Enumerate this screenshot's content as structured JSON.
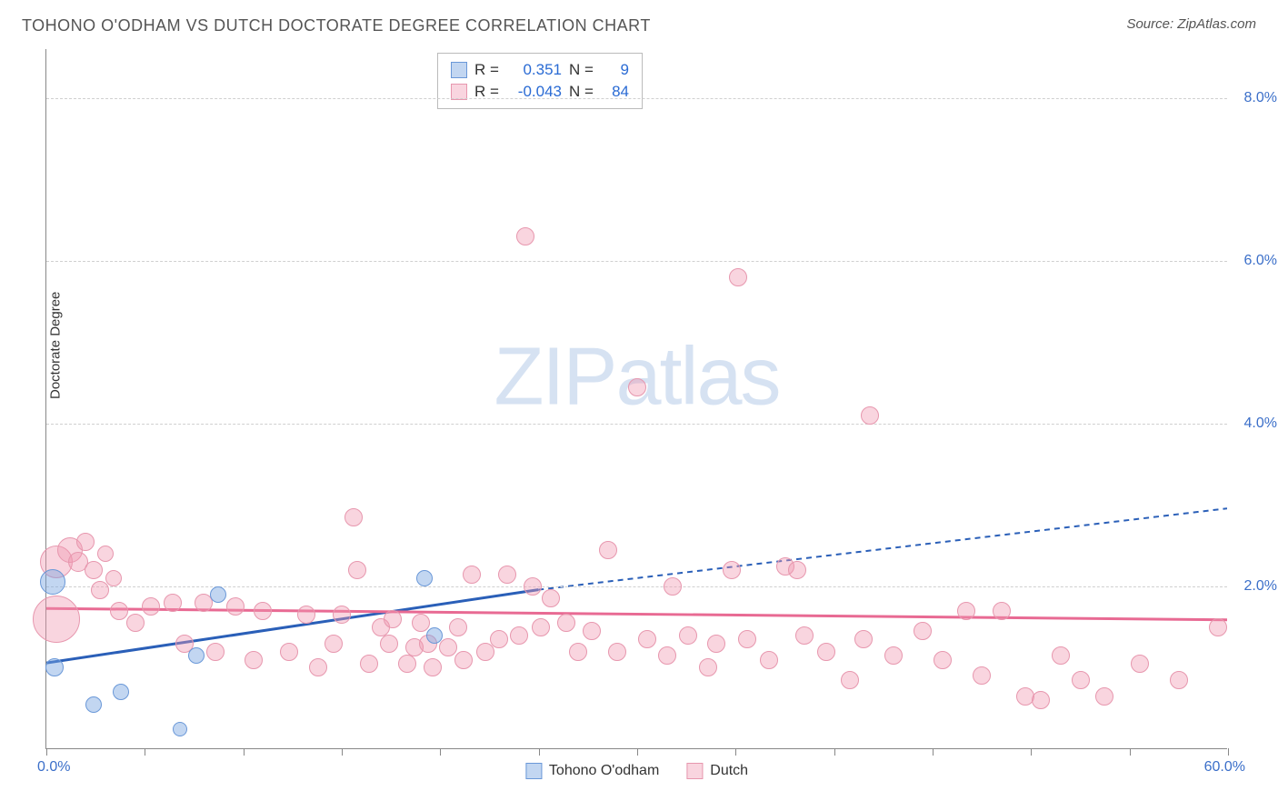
{
  "title": "TOHONO O'ODHAM VS DUTCH DOCTORATE DEGREE CORRELATION CHART",
  "source": "Source: ZipAtlas.com",
  "ylabel": "Doctorate Degree",
  "watermark_a": "ZIP",
  "watermark_b": "atlas",
  "chart": {
    "type": "scatter",
    "xlim": [
      0,
      60
    ],
    "ylim": [
      0,
      8.6
    ],
    "x_min_label": "0.0%",
    "x_max_label": "60.0%",
    "xtick_positions": [
      0,
      5,
      10,
      15,
      20,
      25,
      30,
      35,
      40,
      45,
      50,
      55,
      60
    ],
    "yticks": [
      {
        "v": 2.0,
        "label": "2.0%"
      },
      {
        "v": 4.0,
        "label": "4.0%"
      },
      {
        "v": 6.0,
        "label": "6.0%"
      },
      {
        "v": 8.0,
        "label": "8.0%"
      }
    ],
    "grid_color": "#d8d8d8",
    "background_color": "#ffffff",
    "axis_color": "#888888",
    "tick_label_color": "#3b6fc9"
  },
  "series": [
    {
      "name": "Tohono O'odham",
      "color_fill": "rgba(120,165,225,0.45)",
      "color_stroke": "#6a98d8",
      "trend_color": "#2a5fb8",
      "R": "0.351",
      "N": "9",
      "trend": {
        "x1": 0,
        "y1": 1.05,
        "x2_solid": 25,
        "y2_solid": 1.95,
        "x2": 60,
        "y2": 2.95
      },
      "points": [
        {
          "x": 0.3,
          "y": 2.05,
          "r": 14
        },
        {
          "x": 0.4,
          "y": 1.0,
          "r": 10
        },
        {
          "x": 2.4,
          "y": 0.55,
          "r": 9
        },
        {
          "x": 3.8,
          "y": 0.7,
          "r": 9
        },
        {
          "x": 6.8,
          "y": 0.25,
          "r": 8
        },
        {
          "x": 7.6,
          "y": 1.15,
          "r": 9
        },
        {
          "x": 8.7,
          "y": 1.9,
          "r": 9
        },
        {
          "x": 19.2,
          "y": 2.1,
          "r": 9
        },
        {
          "x": 19.7,
          "y": 1.4,
          "r": 9
        }
      ]
    },
    {
      "name": "Dutch",
      "color_fill": "rgba(240,150,175,0.40)",
      "color_stroke": "#e797ae",
      "trend_color": "#e86a93",
      "R": "-0.043",
      "N": "84",
      "trend": {
        "x1": 0,
        "y1": 1.72,
        "x2_solid": 60,
        "y2_solid": 1.58,
        "x2": 60,
        "y2": 1.58
      },
      "points": [
        {
          "x": 0.5,
          "y": 2.3,
          "r": 18
        },
        {
          "x": 0.5,
          "y": 1.6,
          "r": 26
        },
        {
          "x": 1.2,
          "y": 2.45,
          "r": 14
        },
        {
          "x": 1.6,
          "y": 2.3,
          "r": 11
        },
        {
          "x": 2.0,
          "y": 2.55,
          "r": 10
        },
        {
          "x": 2.4,
          "y": 2.2,
          "r": 10
        },
        {
          "x": 2.7,
          "y": 1.95,
          "r": 10
        },
        {
          "x": 3.0,
          "y": 2.4,
          "r": 9
        },
        {
          "x": 3.4,
          "y": 2.1,
          "r": 9
        },
        {
          "x": 3.7,
          "y": 1.7,
          "r": 10
        },
        {
          "x": 4.5,
          "y": 1.55,
          "r": 10
        },
        {
          "x": 5.3,
          "y": 1.75,
          "r": 10
        },
        {
          "x": 6.4,
          "y": 1.8,
          "r": 10
        },
        {
          "x": 7.0,
          "y": 1.3,
          "r": 10
        },
        {
          "x": 8.0,
          "y": 1.8,
          "r": 10
        },
        {
          "x": 8.6,
          "y": 1.2,
          "r": 10
        },
        {
          "x": 9.6,
          "y": 1.75,
          "r": 10
        },
        {
          "x": 10.5,
          "y": 1.1,
          "r": 10
        },
        {
          "x": 11.0,
          "y": 1.7,
          "r": 10
        },
        {
          "x": 12.3,
          "y": 1.2,
          "r": 10
        },
        {
          "x": 13.2,
          "y": 1.65,
          "r": 10
        },
        {
          "x": 13.8,
          "y": 1.0,
          "r": 10
        },
        {
          "x": 14.6,
          "y": 1.3,
          "r": 10
        },
        {
          "x": 15.0,
          "y": 1.65,
          "r": 10
        },
        {
          "x": 15.6,
          "y": 2.85,
          "r": 10
        },
        {
          "x": 15.8,
          "y": 2.2,
          "r": 10
        },
        {
          "x": 16.4,
          "y": 1.05,
          "r": 10
        },
        {
          "x": 17.0,
          "y": 1.5,
          "r": 10
        },
        {
          "x": 17.4,
          "y": 1.3,
          "r": 10
        },
        {
          "x": 17.6,
          "y": 1.6,
          "r": 10
        },
        {
          "x": 18.3,
          "y": 1.05,
          "r": 10
        },
        {
          "x": 18.7,
          "y": 1.25,
          "r": 10
        },
        {
          "x": 19.0,
          "y": 1.55,
          "r": 10
        },
        {
          "x": 19.4,
          "y": 1.3,
          "r": 10
        },
        {
          "x": 19.6,
          "y": 1.0,
          "r": 10
        },
        {
          "x": 20.4,
          "y": 1.25,
          "r": 10
        },
        {
          "x": 20.9,
          "y": 1.5,
          "r": 10
        },
        {
          "x": 21.2,
          "y": 1.1,
          "r": 10
        },
        {
          "x": 21.6,
          "y": 2.15,
          "r": 10
        },
        {
          "x": 22.3,
          "y": 1.2,
          "r": 10
        },
        {
          "x": 23.0,
          "y": 1.35,
          "r": 10
        },
        {
          "x": 23.4,
          "y": 2.15,
          "r": 10
        },
        {
          "x": 24.0,
          "y": 1.4,
          "r": 10
        },
        {
          "x": 24.3,
          "y": 6.3,
          "r": 10
        },
        {
          "x": 24.7,
          "y": 2.0,
          "r": 10
        },
        {
          "x": 25.1,
          "y": 1.5,
          "r": 10
        },
        {
          "x": 25.6,
          "y": 1.85,
          "r": 10
        },
        {
          "x": 26.4,
          "y": 1.55,
          "r": 10
        },
        {
          "x": 27.0,
          "y": 1.2,
          "r": 10
        },
        {
          "x": 27.7,
          "y": 1.45,
          "r": 10
        },
        {
          "x": 28.5,
          "y": 2.45,
          "r": 10
        },
        {
          "x": 29.0,
          "y": 1.2,
          "r": 10
        },
        {
          "x": 30.0,
          "y": 4.45,
          "r": 10
        },
        {
          "x": 30.5,
          "y": 1.35,
          "r": 10
        },
        {
          "x": 31.5,
          "y": 1.15,
          "r": 10
        },
        {
          "x": 31.8,
          "y": 2.0,
          "r": 10
        },
        {
          "x": 32.6,
          "y": 1.4,
          "r": 10
        },
        {
          "x": 33.6,
          "y": 1.0,
          "r": 10
        },
        {
          "x": 34.0,
          "y": 1.3,
          "r": 10
        },
        {
          "x": 34.8,
          "y": 2.2,
          "r": 10
        },
        {
          "x": 35.1,
          "y": 5.8,
          "r": 10
        },
        {
          "x": 35.6,
          "y": 1.35,
          "r": 10
        },
        {
          "x": 36.7,
          "y": 1.1,
          "r": 10
        },
        {
          "x": 37.5,
          "y": 2.25,
          "r": 10
        },
        {
          "x": 38.1,
          "y": 2.2,
          "r": 10
        },
        {
          "x": 38.5,
          "y": 1.4,
          "r": 10
        },
        {
          "x": 39.6,
          "y": 1.2,
          "r": 10
        },
        {
          "x": 40.8,
          "y": 0.85,
          "r": 10
        },
        {
          "x": 41.5,
          "y": 1.35,
          "r": 10
        },
        {
          "x": 41.8,
          "y": 4.1,
          "r": 10
        },
        {
          "x": 43.0,
          "y": 1.15,
          "r": 10
        },
        {
          "x": 44.5,
          "y": 1.45,
          "r": 10
        },
        {
          "x": 45.5,
          "y": 1.1,
          "r": 10
        },
        {
          "x": 46.7,
          "y": 1.7,
          "r": 10
        },
        {
          "x": 47.5,
          "y": 0.9,
          "r": 10
        },
        {
          "x": 48.5,
          "y": 1.7,
          "r": 10
        },
        {
          "x": 49.7,
          "y": 0.65,
          "r": 10
        },
        {
          "x": 50.5,
          "y": 0.6,
          "r": 10
        },
        {
          "x": 51.5,
          "y": 1.15,
          "r": 10
        },
        {
          "x": 52.5,
          "y": 0.85,
          "r": 10
        },
        {
          "x": 53.7,
          "y": 0.65,
          "r": 10
        },
        {
          "x": 55.5,
          "y": 1.05,
          "r": 10
        },
        {
          "x": 57.5,
          "y": 0.85,
          "r": 10
        },
        {
          "x": 59.5,
          "y": 1.5,
          "r": 10
        }
      ]
    }
  ],
  "legend_bottom": [
    {
      "label": "Tohono O'odham",
      "fill": "rgba(120,165,225,0.45)",
      "stroke": "#6a98d8"
    },
    {
      "label": "Dutch",
      "fill": "rgba(240,150,175,0.40)",
      "stroke": "#e797ae"
    }
  ]
}
